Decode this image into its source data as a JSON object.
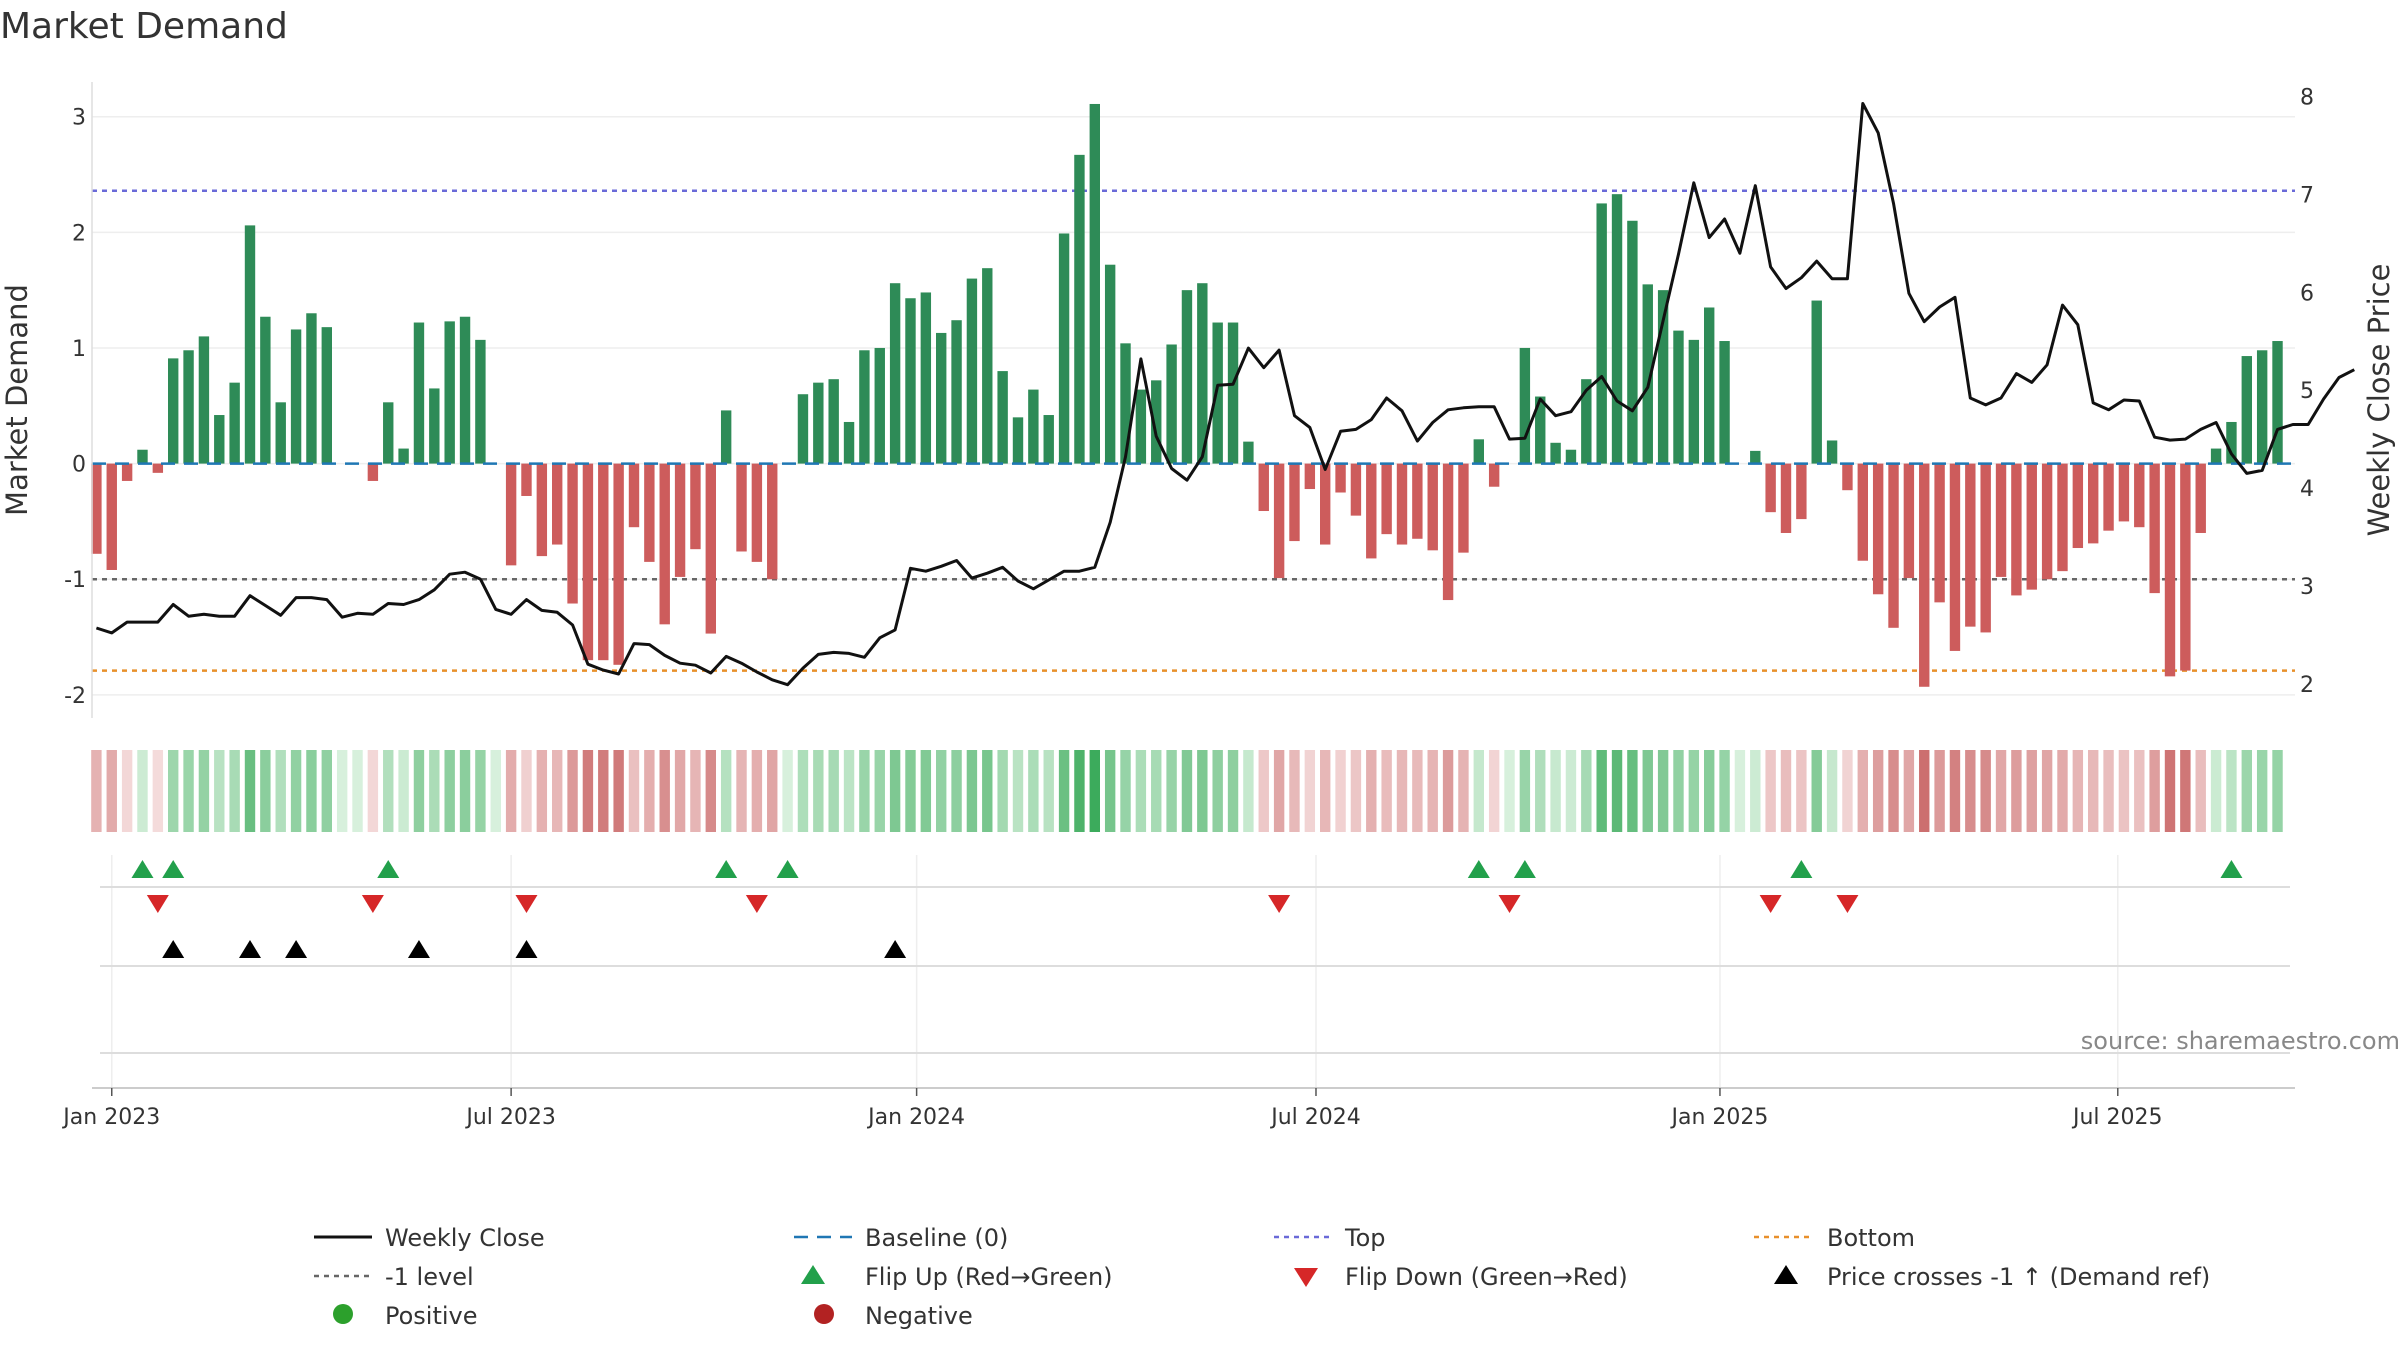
{
  "chart_data": {
    "type": "bar",
    "title": "Market Demand",
    "ylabel": "Market Demand",
    "y2label": "Weekly Close Price",
    "ylim": [
      -2.2,
      3.3
    ],
    "y2lim": [
      1.65,
      8.15
    ],
    "yticks": [
      -2,
      -1,
      0,
      1,
      2,
      3
    ],
    "y2ticks": [
      2,
      3,
      4,
      5,
      6,
      7,
      8
    ],
    "xticks": [
      {
        "label": "Jan 2023",
        "week": 1
      },
      {
        "label": "Jul 2023",
        "week": 27
      },
      {
        "label": "Jan 2024",
        "week": 53.4
      },
      {
        "label": "Jul 2024",
        "week": 79.4
      },
      {
        "label": "Jan 2025",
        "week": 105.7
      },
      {
        "label": "Jul 2025",
        "week": 131.6
      }
    ],
    "reference_lines": {
      "top": 2.36,
      "minus_one": -1.0,
      "bottom": -1.79,
      "baseline": 0
    },
    "series": [
      {
        "name": "Market Demand",
        "values": [
          -0.78,
          -0.92,
          -0.15,
          0.12,
          -0.08,
          0.91,
          0.98,
          1.1,
          0.42,
          0.7,
          2.06,
          1.27,
          0.53,
          1.16,
          1.3,
          1.18,
          0,
          0,
          -0.15,
          0.53,
          0.13,
          1.22,
          0.65,
          1.23,
          1.27,
          1.07,
          0,
          -0.88,
          -0.28,
          -0.8,
          -0.7,
          -1.21,
          -1.7,
          -1.7,
          -1.74,
          -0.55,
          -0.85,
          -1.39,
          -0.98,
          -0.74,
          -1.47,
          0.46,
          -0.76,
          -0.85,
          -1.0,
          0,
          0.6,
          0.7,
          0.73,
          0.36,
          0.98,
          1.0,
          1.56,
          1.43,
          1.48,
          1.13,
          1.24,
          1.6,
          1.69,
          0.8,
          0.4,
          0.64,
          0.42,
          1.99,
          2.67,
          3.11,
          1.72,
          1.04,
          0.64,
          0.72,
          1.03,
          1.5,
          1.56,
          1.22,
          1.22,
          0.19,
          -0.41,
          -0.99,
          -0.67,
          -0.22,
          -0.7,
          -0.25,
          -0.45,
          -0.82,
          -0.61,
          -0.7,
          -0.65,
          -0.75,
          -1.18,
          -0.77,
          0.21,
          -0.2,
          0,
          1.0,
          0.58,
          0.18,
          0.12,
          0.73,
          2.25,
          2.33,
          2.1,
          1.55,
          1.5,
          1.15,
          1.07,
          1.35,
          1.06,
          0,
          0.11,
          -0.42,
          -0.6,
          -0.48,
          1.41,
          0.2,
          -0.23,
          -0.84,
          -1.13,
          -1.42,
          -0.99,
          -1.93,
          -1.2,
          -1.62,
          -1.41,
          -1.46,
          -0.98,
          -1.14,
          -1.09,
          -1.0,
          -0.93,
          -0.73,
          -0.69,
          -0.58,
          -0.5,
          -0.55,
          -1.12,
          -1.84,
          -1.79,
          -0.6,
          0.13,
          0.36,
          0.93,
          0.98,
          1.06
        ]
      },
      {
        "name": "Weekly Close",
        "values": [
          2.57,
          2.52,
          2.63,
          2.63,
          2.63,
          2.81,
          2.69,
          2.71,
          2.69,
          2.69,
          2.9,
          2.8,
          2.7,
          2.88,
          2.88,
          2.86,
          2.68,
          2.72,
          2.71,
          2.82,
          2.81,
          2.86,
          2.96,
          3.12,
          3.14,
          3.07,
          2.76,
          2.71,
          2.86,
          2.75,
          2.73,
          2.6,
          2.2,
          2.14,
          2.1,
          2.41,
          2.4,
          2.29,
          2.21,
          2.19,
          2.11,
          2.28,
          2.21,
          2.12,
          2.04,
          1.99,
          2.16,
          2.3,
          2.32,
          2.31,
          2.27,
          2.47,
          2.55,
          3.18,
          3.15,
          3.2,
          3.26,
          3.08,
          3.13,
          3.19,
          3.05,
          2.97,
          3.06,
          3.15,
          3.15,
          3.19,
          3.65,
          4.32,
          5.32,
          4.53,
          4.2,
          4.08,
          4.32,
          5.05,
          5.06,
          5.43,
          5.23,
          5.41,
          4.74,
          4.62,
          4.19,
          4.58,
          4.6,
          4.7,
          4.92,
          4.79,
          4.48,
          4.67,
          4.8,
          4.82,
          4.83,
          4.83,
          4.5,
          4.51,
          4.91,
          4.74,
          4.78,
          5.0,
          5.14,
          4.89,
          4.79,
          5.03,
          5.71,
          6.39,
          7.12,
          6.56,
          6.75,
          6.4,
          7.09,
          6.26,
          6.04,
          6.15,
          6.32,
          6.14,
          6.14,
          7.93,
          7.63,
          6.91,
          5.99,
          5.7,
          5.85,
          5.95,
          4.92,
          4.85,
          4.92,
          5.17,
          5.08,
          5.26,
          5.87,
          5.67,
          4.87,
          4.8,
          4.9,
          4.89,
          4.52,
          4.49,
          4.5,
          4.6,
          4.67,
          4.35,
          4.15,
          4.18,
          4.6,
          4.65,
          4.65,
          4.91,
          5.13,
          5.21
        ]
      }
    ],
    "flip_up_weeks": [
      3,
      5,
      19,
      41,
      45,
      90,
      93,
      111,
      139
    ],
    "flip_down_weeks": [
      4,
      18,
      28,
      43,
      77,
      92,
      109,
      114
    ],
    "price_cross_weeks": [
      5,
      10,
      13,
      21,
      28,
      52
    ],
    "legend": {
      "weekly_close": "Weekly Close",
      "baseline": "Baseline (0)",
      "top": "Top",
      "bottom": "Bottom",
      "minus_one": "-1 level",
      "flip_up": "Flip Up (Red→Green)",
      "flip_down": "Flip Down (Green→Red)",
      "price_cross": "Price crosses -1 ↑ (Demand ref)",
      "positive": "Positive",
      "negative": "Negative"
    },
    "source": "source: sharemaestro.com"
  },
  "colors": {
    "positive_bar": "#2e8b57",
    "negative_bar": "#cd5c5c",
    "price_line": "#111111",
    "baseline": "#1f77b4",
    "top_line": "#6a6ad8",
    "bottom_line": "#e8902b",
    "minus_one_line": "#666666",
    "flip_up": "#22a04b",
    "flip_down": "#d62728",
    "price_cross": "#000000",
    "positive_dot": "#2ca02c",
    "negative_dot": "#b22222"
  }
}
